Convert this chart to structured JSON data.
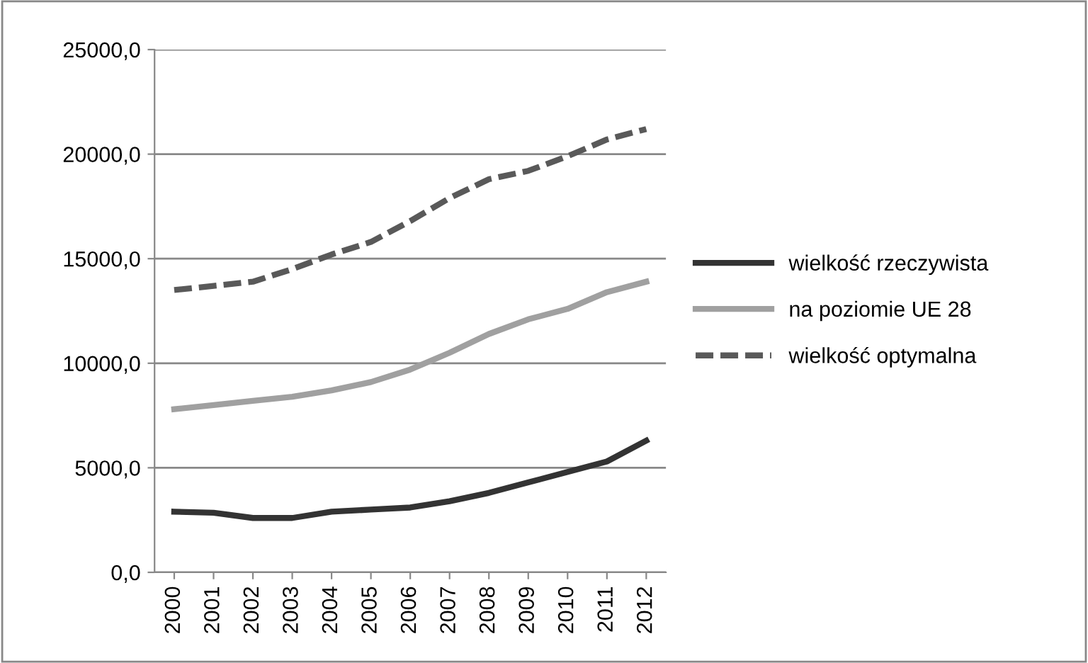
{
  "chart_data": {
    "type": "line",
    "categories": [
      "2000",
      "2001",
      "2002",
      "2003",
      "2004",
      "2005",
      "2006",
      "2007",
      "2008",
      "2009",
      "2010",
      "2011",
      "2012"
    ],
    "series": [
      {
        "name": "wielkość rzeczywista",
        "color": "#333333",
        "line_style": "solid",
        "values": [
          2900,
          2850,
          2600,
          2600,
          2900,
          3000,
          3100,
          3400,
          3800,
          4300,
          4800,
          5300,
          6300
        ]
      },
      {
        "name": "na poziomie UE 28",
        "color": "#a0a0a0",
        "line_style": "solid",
        "values": [
          7800,
          8000,
          8200,
          8400,
          8700,
          9100,
          9700,
          10500,
          11400,
          12100,
          12600,
          13400,
          13900
        ]
      },
      {
        "name": "wielkość optymalna",
        "color": "#595959",
        "line_style": "dashed",
        "values": [
          13500,
          13700,
          13900,
          14500,
          15200,
          15800,
          16800,
          17900,
          18800,
          19200,
          19900,
          20700,
          21200
        ]
      }
    ],
    "ylim": [
      0,
      25000
    ],
    "yticks": [
      {
        "value": 0,
        "label": "0,0"
      },
      {
        "value": 5000,
        "label": "5000,0"
      },
      {
        "value": 10000,
        "label": "10000,0"
      },
      {
        "value": 15000,
        "label": "15000,0"
      },
      {
        "value": 20000,
        "label": "20000,0"
      },
      {
        "value": 25000,
        "label": "25000,0"
      }
    ],
    "grid": "y",
    "legend": "right",
    "marker": "none"
  }
}
